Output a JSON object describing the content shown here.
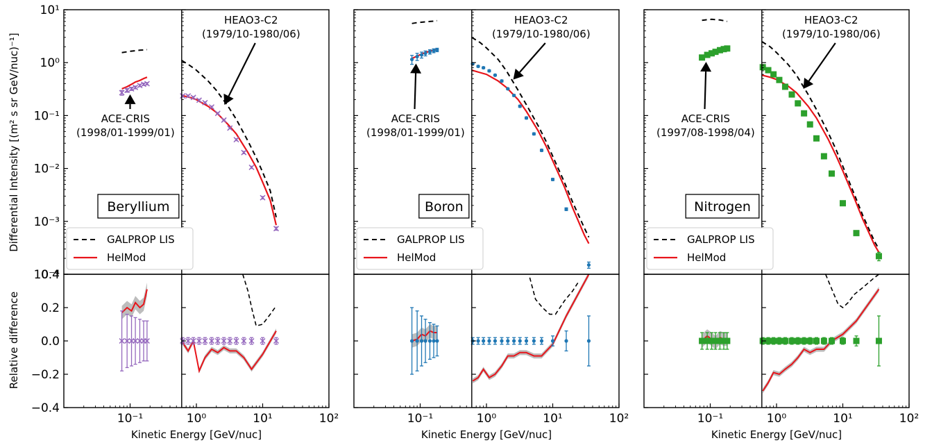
{
  "figure": {
    "ylabel_top": "Differential Intensity [(m² s sr GeV/nuc)⁻¹]",
    "ylabel_bottom": "Relative difference",
    "xlabel": "Kinetic Energy [GeV/nuc]",
    "legend": [
      "GALPROP LIS",
      "HelMod"
    ],
    "colors": {
      "lis": "#000000",
      "helmod": "#e8141a",
      "band": "#bdbdbd",
      "Beryllium": "#9467bd",
      "Boron": "#1f77b4",
      "Nitrogen": "#2ca02c"
    },
    "top_ticks": [
      "10⁻⁴",
      "10⁻³",
      "10⁻²",
      "10⁻¹",
      "10⁰",
      "10¹"
    ],
    "bottom_ticks": [
      "−0.4",
      "−0.2",
      "0.0",
      "0.2",
      "0.4"
    ],
    "x_ticks": [
      "10⁻¹",
      "10⁰",
      "10¹",
      "10²"
    ]
  },
  "chart_data": [
    {
      "type": "scatter",
      "title": "Beryllium",
      "x_scale": "log",
      "xlim": [
        0.01,
        100
      ],
      "y_scale": "log",
      "ylim": [
        0.0001,
        10
      ],
      "ratio_ylim": [
        -0.4,
        0.4
      ],
      "marker": "x",
      "ace": {
        "label": "ACE-CRIS\n(1998/01-1999/01)",
        "x": [
          0.075,
          0.09,
          0.105,
          0.12,
          0.14,
          0.16,
          0.18
        ],
        "y": [
          0.27,
          0.3,
          0.32,
          0.34,
          0.37,
          0.39,
          0.4
        ],
        "err": [
          0.028,
          0.024,
          0.022,
          0.02,
          0.02,
          0.02,
          0.02
        ],
        "helmod": [
          0.32,
          0.35,
          0.39,
          0.43,
          0.46,
          0.5,
          0.53
        ],
        "lis": [
          1.55,
          1.6,
          1.65,
          1.68,
          1.72,
          1.74,
          1.76
        ],
        "ratio_helmod": [
          0.17,
          0.2,
          0.18,
          0.23,
          0.2,
          0.22,
          0.31
        ],
        "ratio_err": [
          0.18,
          0.16,
          0.15,
          0.14,
          0.13,
          0.12,
          0.12
        ]
      },
      "heao": {
        "label": "HEAO3-C2\n(1979/10-1980/06)",
        "x": [
          0.62,
          0.75,
          0.9,
          1.1,
          1.35,
          1.7,
          2.1,
          2.6,
          3.2,
          4.0,
          5.2,
          6.8,
          10.0,
          16.0
        ],
        "y": [
          0.235,
          0.235,
          0.22,
          0.195,
          0.175,
          0.145,
          0.11,
          0.082,
          0.058,
          0.035,
          0.02,
          0.0105,
          0.0028,
          0.00073
        ],
        "err": [
          0.01,
          0.01,
          0.009,
          0.008,
          0.007,
          0.006,
          0.004,
          0.003,
          0.002,
          0.0015,
          0.001,
          0.0005,
          0.00015,
          5e-05
        ],
        "helmod_x": [
          0.6,
          0.8,
          1.0,
          1.5,
          2.0,
          3.0,
          4.0,
          6.0,
          8.0,
          10.0,
          13.0,
          16.0
        ],
        "helmod": [
          0.24,
          0.22,
          0.2,
          0.15,
          0.115,
          0.068,
          0.045,
          0.02,
          0.0105,
          0.0055,
          0.0025,
          0.00085
        ],
        "lis_x": [
          0.6,
          0.8,
          1.0,
          1.5,
          2.0,
          3.0,
          4.0,
          6.0,
          8.0,
          10.0,
          13.0,
          16.0
        ],
        "lis": [
          1.1,
          0.88,
          0.72,
          0.45,
          0.3,
          0.15,
          0.085,
          0.033,
          0.016,
          0.0085,
          0.0038,
          0.0012
        ],
        "ratio_x": [
          0.62,
          0.75,
          0.9,
          1.1,
          1.35,
          1.7,
          2.1,
          2.6,
          3.2,
          4.0,
          5.2,
          6.8,
          10.0,
          16.0
        ],
        "ratio_helmod": [
          -0.01,
          -0.06,
          0.0,
          -0.18,
          -0.1,
          -0.05,
          -0.07,
          -0.04,
          -0.06,
          -0.06,
          -0.1,
          -0.17,
          -0.08,
          0.06
        ],
        "ratio_err": [
          0.02,
          0.02,
          0.02,
          0.02,
          0.02,
          0.02,
          0.02,
          0.02,
          0.02,
          0.02,
          0.02,
          0.02,
          0.02,
          0.02
        ],
        "ratio_lis_x": [
          5.0,
          6.0,
          7.0,
          8.0,
          10.0,
          13.0,
          16.0
        ],
        "ratio_lis": [
          0.4,
          0.3,
          0.18,
          0.09,
          0.1,
          0.16,
          0.21
        ]
      }
    },
    {
      "type": "scatter",
      "title": "Boron",
      "x_scale": "log",
      "xlim": [
        0.01,
        100
      ],
      "y_scale": "log",
      "ylim": [
        0.0001,
        10
      ],
      "ratio_ylim": [
        -0.4,
        0.4
      ],
      "marker": "dot",
      "ace": {
        "label": "ACE-CRIS\n(1998/01-1999/01)",
        "x": [
          0.075,
          0.09,
          0.105,
          0.12,
          0.14,
          0.16,
          0.18
        ],
        "y": [
          1.15,
          1.3,
          1.4,
          1.5,
          1.6,
          1.68,
          1.74
        ],
        "err": [
          0.22,
          0.2,
          0.18,
          0.16,
          0.15,
          0.14,
          0.13
        ],
        "helmod": [
          1.2,
          1.33,
          1.45,
          1.55,
          1.64,
          1.72,
          1.78
        ],
        "lis": [
          5.5,
          5.7,
          5.8,
          5.9,
          6.0,
          6.1,
          6.2
        ],
        "ratio_helmod": [
          0.0,
          0.01,
          0.04,
          0.03,
          0.06,
          0.05,
          0.05
        ],
        "ratio_err": [
          0.2,
          0.18,
          0.15,
          0.13,
          0.11,
          0.1,
          0.09
        ]
      },
      "heao": {
        "label": "HEAO3-C2\n(1979/10-1980/06)",
        "x": [
          0.62,
          0.75,
          0.9,
          1.1,
          1.35,
          1.7,
          2.1,
          2.6,
          3.2,
          4.0,
          5.2,
          6.8,
          10.0,
          16.0,
          35.0
        ],
        "y": [
          0.95,
          0.85,
          0.8,
          0.7,
          0.58,
          0.45,
          0.32,
          0.24,
          0.15,
          0.09,
          0.045,
          0.022,
          0.0062,
          0.0017,
          0.00015
        ],
        "err": [
          0.03,
          0.03,
          0.03,
          0.03,
          0.02,
          0.02,
          0.01,
          0.01,
          0.007,
          0.004,
          0.002,
          0.001,
          0.0003,
          0.0001,
          2e-05
        ],
        "helmod_x": [
          0.6,
          0.8,
          1.0,
          1.5,
          2.0,
          3.0,
          4.0,
          6.0,
          8.0,
          10.0,
          15.0,
          20.0,
          30.0,
          35.0
        ],
        "helmod": [
          0.72,
          0.65,
          0.6,
          0.45,
          0.34,
          0.2,
          0.12,
          0.052,
          0.026,
          0.014,
          0.0045,
          0.0018,
          0.00055,
          0.00038
        ],
        "lis_x": [
          0.6,
          0.8,
          1.0,
          1.5,
          2.0,
          3.0,
          4.0,
          6.0,
          8.0,
          10.0,
          15.0,
          20.0,
          30.0,
          35.0
        ],
        "lis": [
          3.0,
          2.4,
          1.9,
          1.15,
          0.7,
          0.3,
          0.16,
          0.065,
          0.032,
          0.017,
          0.0055,
          0.0023,
          0.00075,
          0.0005
        ],
        "ratio_x": [
          0.62,
          0.75,
          0.9,
          1.1,
          1.35,
          1.7,
          2.1,
          2.6,
          3.2,
          4.0,
          5.2,
          6.8,
          10.0,
          16.0,
          35.0
        ],
        "ratio_helmod": [
          -0.24,
          -0.22,
          -0.17,
          -0.22,
          -0.2,
          -0.15,
          -0.09,
          -0.09,
          -0.07,
          -0.07,
          -0.09,
          -0.09,
          -0.02,
          0.15,
          0.4
        ],
        "ratio_err": [
          0.02,
          0.02,
          0.02,
          0.02,
          0.02,
          0.02,
          0.02,
          0.02,
          0.02,
          0.02,
          0.02,
          0.02,
          0.03,
          0.06,
          0.15
        ],
        "ratio_lis_x": [
          4.5,
          5.5,
          7.0,
          9.0,
          11.0,
          15.0,
          20.0,
          25.0
        ],
        "ratio_lis": [
          0.38,
          0.25,
          0.2,
          0.16,
          0.16,
          0.24,
          0.3,
          0.36
        ]
      }
    },
    {
      "type": "scatter",
      "title": "Nitrogen",
      "x_scale": "log",
      "xlim": [
        0.01,
        100
      ],
      "y_scale": "log",
      "ylim": [
        0.0001,
        10
      ],
      "ratio_ylim": [
        -0.4,
        0.4
      ],
      "marker": "square",
      "ace": {
        "label": "ACE-CRIS\n(1997/08-1998/04)",
        "x": [
          0.075,
          0.09,
          0.105,
          0.12,
          0.14,
          0.16,
          0.18
        ],
        "y": [
          1.25,
          1.4,
          1.5,
          1.6,
          1.72,
          1.8,
          1.85
        ],
        "err": [
          0.05,
          0.05,
          0.05,
          0.05,
          0.05,
          0.05,
          0.05
        ],
        "helmod": [
          1.25,
          1.4,
          1.5,
          1.62,
          1.7,
          1.8,
          1.85
        ],
        "lis": [
          6.3,
          6.5,
          6.6,
          6.5,
          6.4,
          6.2,
          6.0
        ],
        "ratio_helmod": [
          0.0,
          0.03,
          0.01,
          -0.01,
          0.02,
          0.01,
          0.01
        ],
        "ratio_err": [
          0.05,
          0.05,
          0.05,
          0.05,
          0.05,
          0.05,
          0.05
        ]
      },
      "heao": {
        "label": "HEAO3-C2\n(1979/10-1980/06)",
        "x": [
          0.62,
          0.75,
          0.9,
          1.1,
          1.35,
          1.7,
          2.1,
          2.6,
          3.2,
          4.0,
          5.2,
          6.8,
          10.0,
          16.0,
          35.0
        ],
        "y": [
          0.82,
          0.72,
          0.6,
          0.47,
          0.35,
          0.25,
          0.17,
          0.11,
          0.068,
          0.037,
          0.017,
          0.008,
          0.0022,
          0.0006,
          0.00022
        ],
        "err": [
          0.02,
          0.02,
          0.02,
          0.02,
          0.01,
          0.01,
          0.006,
          0.004,
          0.003,
          0.002,
          0.0008,
          0.0004,
          0.0001,
          3e-05,
          4e-05
        ],
        "helmod_x": [
          0.6,
          0.8,
          1.0,
          1.5,
          2.0,
          3.0,
          4.0,
          6.0,
          8.0,
          10.0,
          15.0,
          20.0,
          30.0,
          35.0
        ],
        "helmod": [
          0.58,
          0.53,
          0.48,
          0.36,
          0.27,
          0.15,
          0.09,
          0.036,
          0.017,
          0.009,
          0.0027,
          0.0011,
          0.00036,
          0.00026
        ],
        "lis_x": [
          0.6,
          0.8,
          1.0,
          1.5,
          2.0,
          3.0,
          4.0,
          6.0,
          8.0,
          10.0,
          15.0,
          20.0,
          30.0,
          35.0
        ],
        "lis": [
          2.5,
          2.0,
          1.55,
          0.92,
          0.58,
          0.25,
          0.13,
          0.048,
          0.022,
          0.011,
          0.0032,
          0.0013,
          0.00042,
          0.0003
        ],
        "ratio_x": [
          0.62,
          0.75,
          0.9,
          1.1,
          1.35,
          1.7,
          2.1,
          2.6,
          3.2,
          4.0,
          5.2,
          6.8,
          10.0,
          16.0,
          35.0
        ],
        "ratio_helmod": [
          -0.3,
          -0.25,
          -0.19,
          -0.2,
          -0.17,
          -0.14,
          -0.1,
          -0.05,
          -0.07,
          -0.05,
          -0.05,
          0.0,
          0.04,
          0.12,
          0.31
        ],
        "ratio_err": [
          0.02,
          0.02,
          0.02,
          0.02,
          0.02,
          0.02,
          0.02,
          0.02,
          0.02,
          0.02,
          0.02,
          0.02,
          0.02,
          0.03,
          0.15
        ],
        "ratio_lis_x": [
          5.5,
          7.0,
          8.5,
          10.0,
          12.0,
          15.0,
          20.0,
          30.0,
          35.0
        ],
        "ratio_lis": [
          0.4,
          0.3,
          0.22,
          0.2,
          0.23,
          0.28,
          0.32,
          0.38,
          0.4
        ]
      }
    }
  ]
}
